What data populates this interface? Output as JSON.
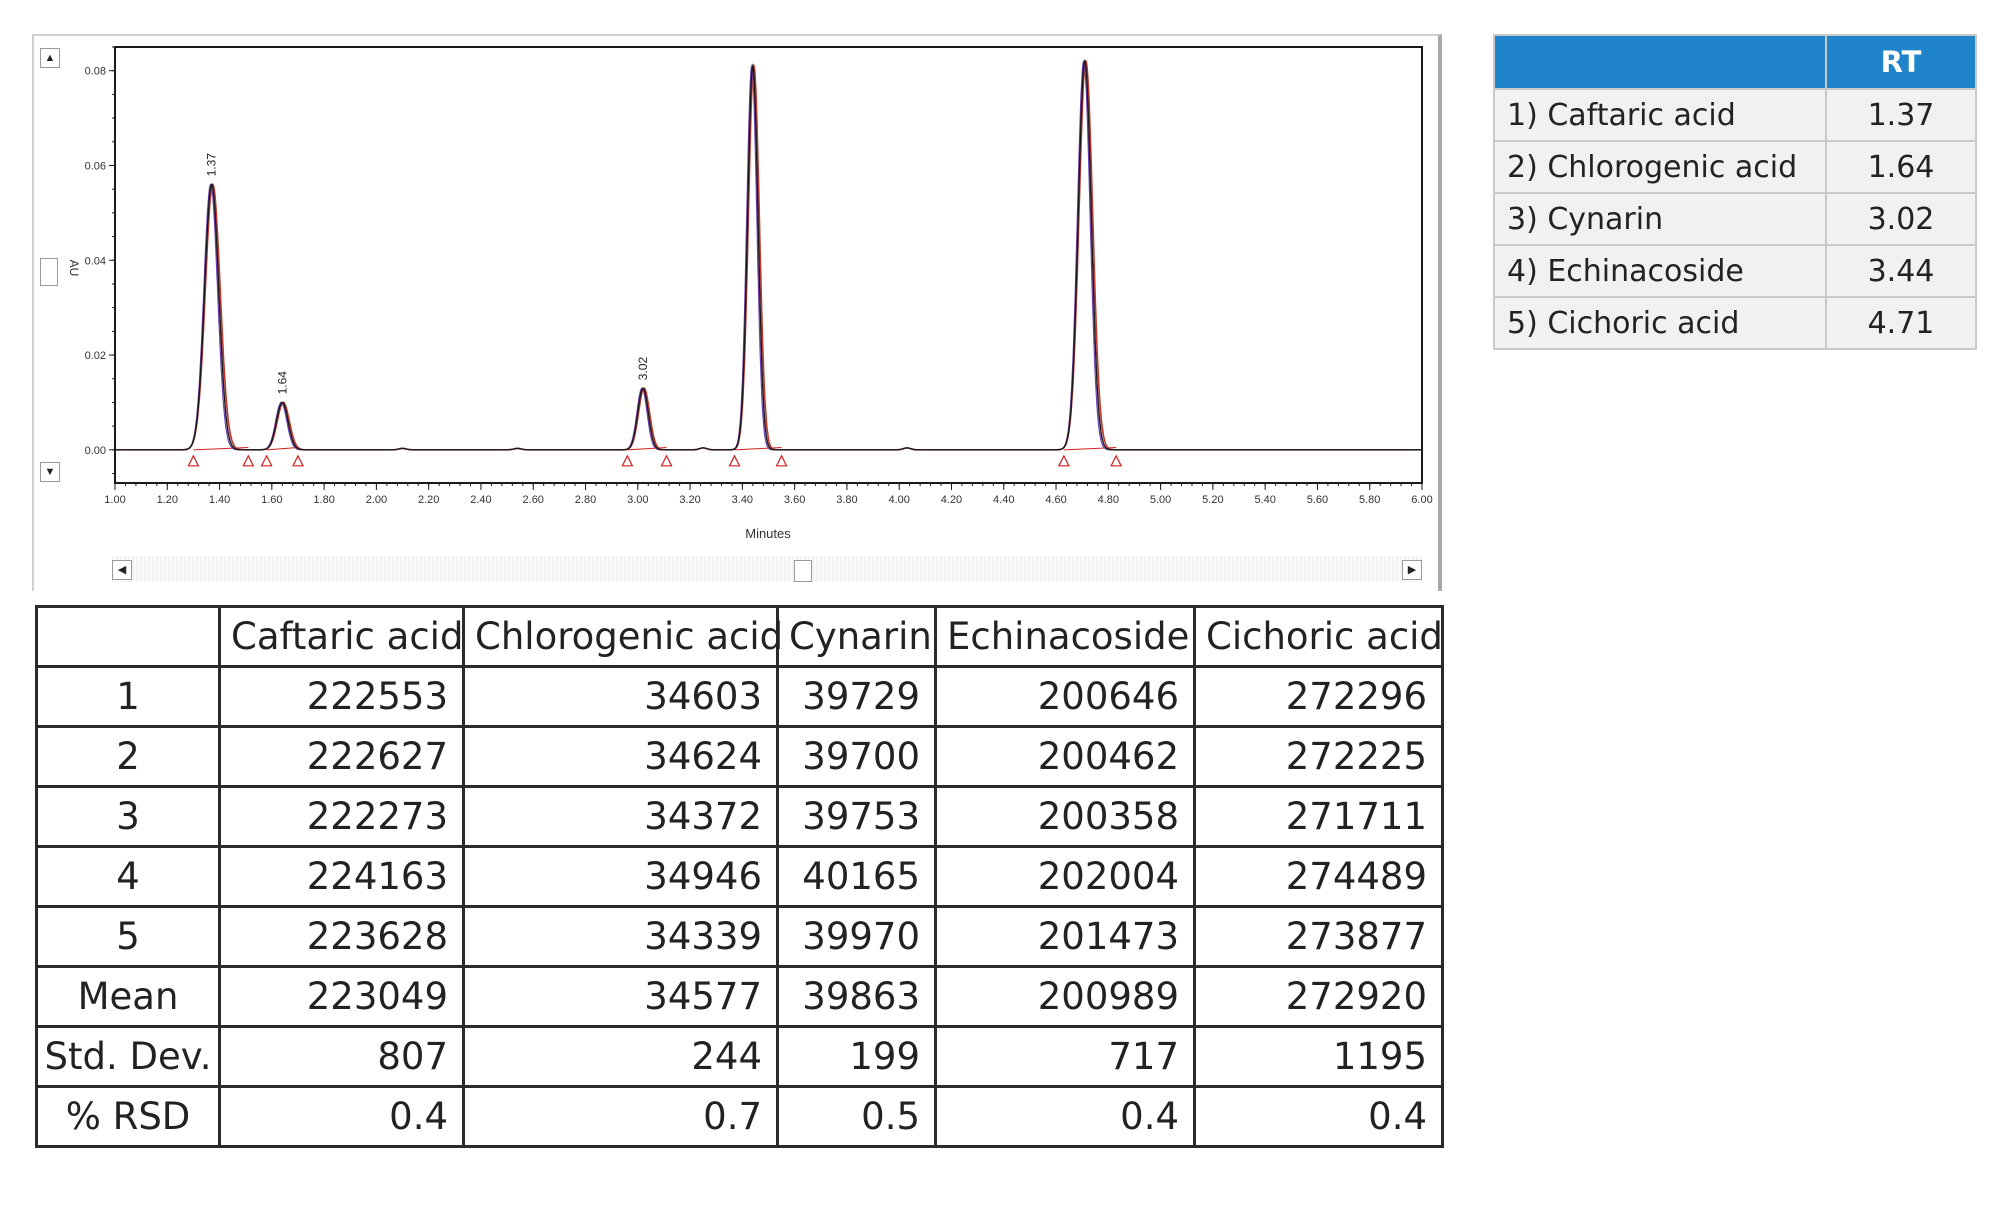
{
  "chart_data": {
    "type": "line",
    "title": "",
    "xlabel": "Minutes",
    "ylabel": "AU",
    "xlim": [
      1.0,
      6.0
    ],
    "ylim": [
      -0.007,
      0.085
    ],
    "x_ticks": [
      "1.00",
      "1.20",
      "1.40",
      "1.60",
      "1.80",
      "2.00",
      "2.20",
      "2.40",
      "2.60",
      "2.80",
      "3.00",
      "3.20",
      "3.40",
      "3.60",
      "3.80",
      "4.00",
      "4.20",
      "4.40",
      "4.60",
      "4.80",
      "5.00",
      "5.20",
      "5.40",
      "5.60",
      "5.80",
      "6.00"
    ],
    "y_ticks": [
      "0.00",
      "0.02",
      "0.04",
      "0.06",
      "0.08"
    ],
    "y_tick_values": [
      0.0,
      0.02,
      0.04,
      0.06,
      0.08
    ],
    "peaks": [
      {
        "rt": 1.37,
        "height": 0.056,
        "sigma": 0.027,
        "label": "1.37",
        "markers": [
          1.3,
          1.51
        ]
      },
      {
        "rt": 1.64,
        "height": 0.01,
        "sigma": 0.022,
        "label": "1.64",
        "markers": [
          1.58,
          1.7
        ]
      },
      {
        "rt": 3.02,
        "height": 0.013,
        "sigma": 0.02,
        "label": "3.02",
        "markers": [
          2.96,
          3.11
        ]
      },
      {
        "rt": 3.44,
        "height": 0.081,
        "sigma": 0.02,
        "label": "",
        "markers": [
          3.37,
          3.55
        ]
      },
      {
        "rt": 4.71,
        "height": 0.082,
        "sigma": 0.025,
        "label": "",
        "markers": [
          4.63,
          4.83
        ]
      }
    ],
    "grid": false,
    "legend": "none"
  },
  "colors": {
    "trace": "#1a1a1a",
    "fit": "#c0392b",
    "overlay": "#6a3fb0",
    "marker": "#d12020",
    "header_blue": "#1f84c9"
  },
  "scroll_icons": {
    "up": "▲",
    "down": "▼",
    "left": "◀",
    "right": "▶"
  },
  "rt_table": {
    "header": [
      "",
      "RT"
    ],
    "rows": [
      {
        "name": "1) Caftaric acid",
        "rt": "1.37"
      },
      {
        "name": "2) Chlorogenic acid",
        "rt": "1.64"
      },
      {
        "name": "3) Cynarin",
        "rt": "3.02"
      },
      {
        "name": "4) Echinacoside",
        "rt": "3.44"
      },
      {
        "name": "5) Cichoric acid",
        "rt": "4.71"
      }
    ]
  },
  "area_table": {
    "columns": [
      "",
      "Caftaric acid",
      "Chlorogenic acid",
      "Cynarin",
      "Echinacoside",
      "Cichoric acid"
    ],
    "rows": [
      [
        "1",
        "222553",
        "34603",
        "39729",
        "200646",
        "272296"
      ],
      [
        "2",
        "222627",
        "34624",
        "39700",
        "200462",
        "272225"
      ],
      [
        "3",
        "222273",
        "34372",
        "39753",
        "200358",
        "271711"
      ],
      [
        "4",
        "224163",
        "34946",
        "40165",
        "202004",
        "274489"
      ],
      [
        "5",
        "223628",
        "34339",
        "39970",
        "201473",
        "273877"
      ],
      [
        "Mean",
        "223049",
        "34577",
        "39863",
        "200989",
        "272920"
      ],
      [
        "Std. Dev.",
        "807",
        "244",
        "199",
        "717",
        "1195"
      ],
      [
        "% RSD",
        "0.4",
        "0.7",
        "0.5",
        "0.4",
        "0.4"
      ]
    ]
  }
}
